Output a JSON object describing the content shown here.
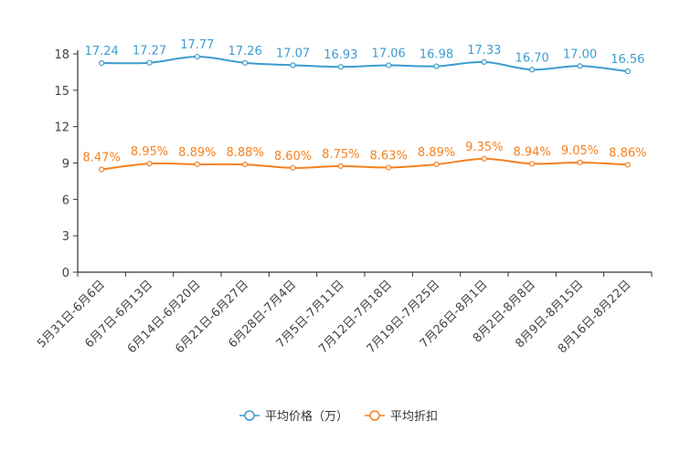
{
  "chart_data": {
    "type": "line",
    "categories": [
      "5月31日-6月6日",
      "6月7日-6月13日",
      "6月14日-6月20日",
      "6月21日-6月27日",
      "6月28日-7月4日",
      "7月5日-7月11日",
      "7月12日-7月18日",
      "7月19日-7月25日",
      "7月26日-8月1日",
      "8月2日-8月8日",
      "8月9日-8月15日",
      "8月16日-8月22日"
    ],
    "series": [
      {
        "name": "平均价格（万）",
        "color": "#3d9ccf",
        "values": [
          17.24,
          17.27,
          17.77,
          17.26,
          17.07,
          16.93,
          17.06,
          16.98,
          17.33,
          16.7,
          17.0,
          16.56
        ],
        "labels": [
          "17.24",
          "17.27",
          "17.77",
          "17.26",
          "17.07",
          "16.93",
          "17.06",
          "16.98",
          "17.33",
          "16.70",
          "17.00",
          "16.56"
        ]
      },
      {
        "name": "平均折扣",
        "color": "#f5811f",
        "values": [
          8.47,
          8.95,
          8.89,
          8.88,
          8.6,
          8.75,
          8.63,
          8.89,
          9.35,
          8.94,
          9.05,
          8.86
        ],
        "labels": [
          "8.47%",
          "8.95%",
          "8.89%",
          "8.88%",
          "8.60%",
          "8.75%",
          "8.63%",
          "8.89%",
          "9.35%",
          "8.94%",
          "9.05%",
          "8.86%"
        ]
      }
    ],
    "ylim": [
      0,
      18
    ],
    "yticks": [
      "0",
      "3",
      "6",
      "9",
      "12",
      "15",
      "18"
    ],
    "ytick_values": [
      0,
      3,
      6,
      9,
      12,
      15,
      18
    ],
    "legend_position": "bottom-center",
    "grid": false
  }
}
